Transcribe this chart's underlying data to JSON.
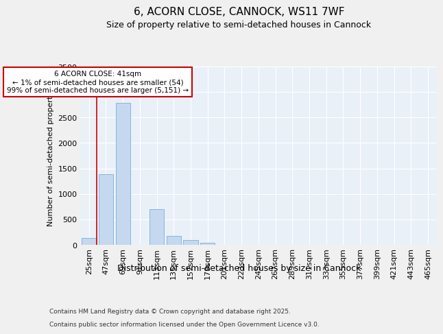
{
  "title": "6, ACORN CLOSE, CANNOCK, WS11 7WF",
  "subtitle": "Size of property relative to semi-detached houses in Cannock",
  "xlabel": "Distribution of semi-detached houses by size in Cannock",
  "ylabel": "Number of semi-detached properties",
  "annotation_text": "6 ACORN CLOSE: 41sqm\n← 1% of semi-detached houses are smaller (54)\n99% of semi-detached houses are larger (5,151) →",
  "footer1": "Contains HM Land Registry data © Crown copyright and database right 2025.",
  "footer2": "Contains public sector information licensed under the Open Government Licence v3.0.",
  "categories": [
    "25sqm",
    "47sqm",
    "69sqm",
    "91sqm",
    "113sqm",
    "135sqm",
    "157sqm",
    "179sqm",
    "201sqm",
    "223sqm",
    "245sqm",
    "267sqm",
    "289sqm",
    "311sqm",
    "333sqm",
    "355sqm",
    "377sqm",
    "399sqm",
    "421sqm",
    "443sqm",
    "465sqm"
  ],
  "values": [
    140,
    1380,
    2790,
    0,
    700,
    175,
    95,
    40,
    0,
    0,
    0,
    0,
    0,
    0,
    0,
    0,
    0,
    0,
    0,
    0,
    0
  ],
  "bar_color": "#c5d8f0",
  "bar_edge_color": "#7aafd4",
  "vline_x": 0.47,
  "vline_color": "#cc0000",
  "ylim": [
    0,
    3500
  ],
  "yticks": [
    0,
    500,
    1000,
    1500,
    2000,
    2500,
    3000,
    3500
  ],
  "fig_bg_color": "#f0f0f0",
  "axes_bg_color": "#eaf0f8",
  "grid_color": "#ffffff",
  "annotation_box_color": "#cc0000",
  "title_fontsize": 11,
  "subtitle_fontsize": 9,
  "ylabel_fontsize": 8,
  "xlabel_fontsize": 9,
  "tick_fontsize": 8,
  "footer_fontsize": 6.5
}
